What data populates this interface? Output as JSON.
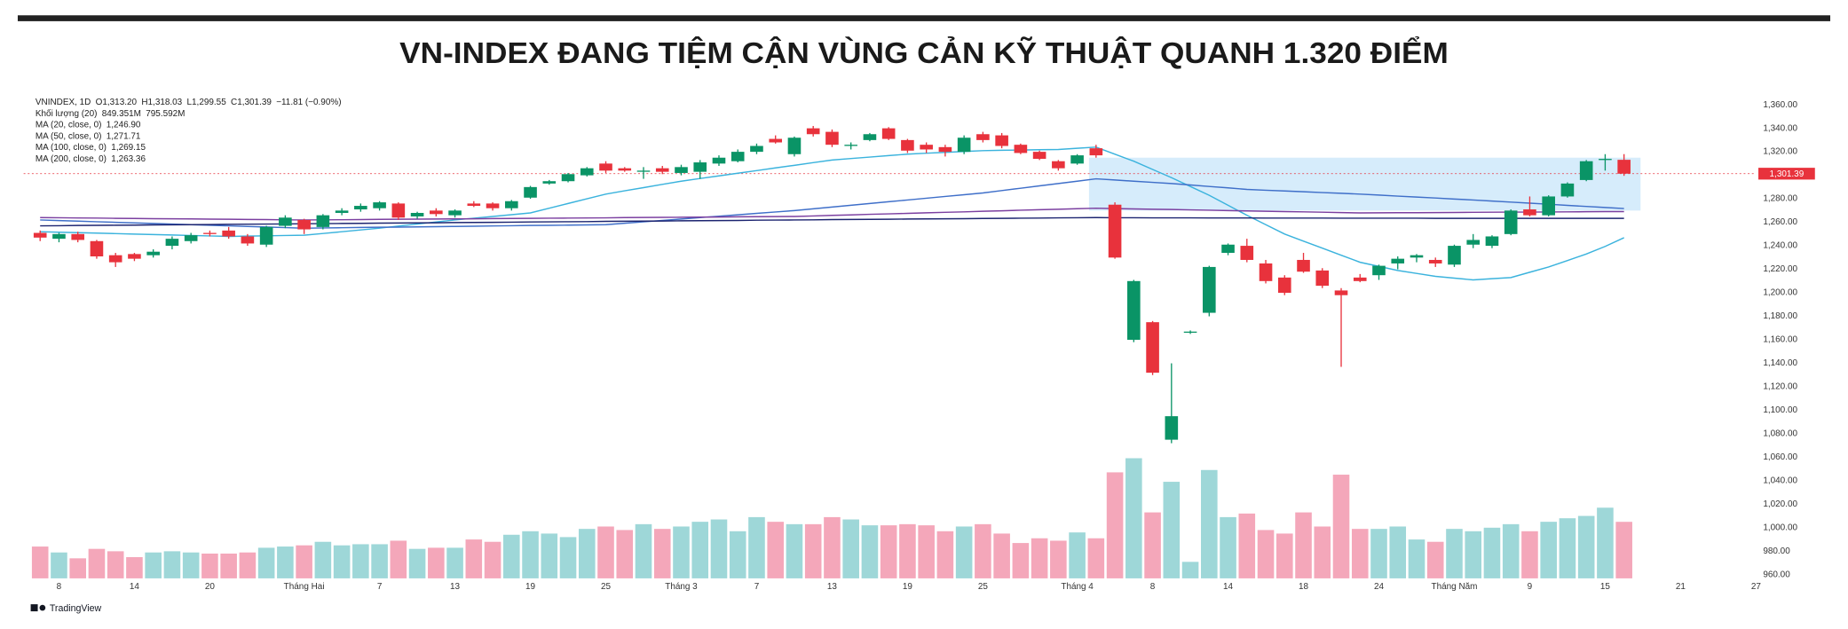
{
  "chart_data": {
    "type": "candlestick",
    "title": "VN-INDEX ĐANG TIỆM CẬN VÙNG CẢN KỸ THUẬT QUANH 1.320 ĐIỂM",
    "symbol": "VNINDEX, 1D",
    "ohlc_text": [
      "O1,313.20",
      "H1,318.03",
      "L1,299.55",
      "C1,301.39",
      "−11.81 (−0.90%)"
    ],
    "brand": "TradingView",
    "categories": [
      null,
      "8",
      null,
      null,
      null,
      "14",
      null,
      null,
      null,
      "20",
      null,
      null,
      null,
      null,
      "Tháng Hai",
      null,
      null,
      null,
      "7",
      null,
      null,
      null,
      "13",
      null,
      null,
      null,
      "19",
      null,
      null,
      null,
      "25",
      null,
      null,
      null,
      "Tháng 3",
      null,
      null,
      null,
      "7",
      null,
      null,
      null,
      "13",
      null,
      null,
      null,
      "19",
      null,
      null,
      null,
      "25",
      null,
      null,
      null,
      null,
      "Tháng 4",
      null,
      null,
      null,
      "8",
      null,
      null,
      null,
      "14",
      null,
      null,
      null,
      "18",
      null,
      null,
      null,
      "24",
      null,
      null,
      null,
      "Tháng Năm",
      null,
      null,
      null,
      "9",
      null,
      null,
      null,
      "15",
      null,
      null,
      null,
      "21",
      null,
      null,
      null,
      "27"
    ],
    "ylim": [
      956,
      1369
    ],
    "yticks": [
      {
        "value": 960,
        "label": "960.00"
      },
      {
        "value": 980,
        "label": "980.00"
      },
      {
        "value": 1000,
        "label": "1,000.00"
      },
      {
        "value": 1020,
        "label": "1,020.00"
      },
      {
        "value": 1040,
        "label": "1,040.00"
      },
      {
        "value": 1060,
        "label": "1,060.00"
      },
      {
        "value": 1080,
        "label": "1,080.00"
      },
      {
        "value": 1100,
        "label": "1,100.00"
      },
      {
        "value": 1120,
        "label": "1,120.00"
      },
      {
        "value": 1140,
        "label": "1,140.00"
      },
      {
        "value": 1160,
        "label": "1,160.00"
      },
      {
        "value": 1180,
        "label": "1,180.00"
      },
      {
        "value": 1200,
        "label": "1,200.00"
      },
      {
        "value": 1220,
        "label": "1,220.00"
      },
      {
        "value": 1240,
        "label": "1,240.00"
      },
      {
        "value": 1260,
        "label": "1,260.00"
      },
      {
        "value": 1280,
        "label": "1,280.00"
      },
      {
        "value": 1300,
        "label": "1,300.00"
      },
      {
        "value": 1320,
        "label": "1,320.00"
      },
      {
        "value": 1340,
        "label": "1,340.00"
      },
      {
        "value": 1360,
        "label": "1,360.00"
      }
    ],
    "grid": false,
    "up_color": "#0a9466",
    "down_color": "#e8323c",
    "last_price_label": "1,301.39",
    "zone": {
      "from": 1270,
      "to": 1315,
      "start": 56,
      "color": "#d6ecfb"
    },
    "ohlc": {
      "open": [
        1251,
        1246,
        1250,
        1244,
        1232,
        1233,
        1232,
        1240,
        1244,
        1251,
        1253,
        1248,
        1241,
        1257,
        1262,
        1256,
        1268,
        1271,
        1272,
        1276,
        1265,
        1270,
        1266,
        1276,
        1276,
        1272,
        1281,
        1293,
        1295,
        1300,
        1310,
        1306,
        1303,
        1306,
        1302,
        1303,
        1310,
        1312,
        1320,
        1331,
        1318,
        1340,
        1337,
        1325,
        1330,
        1340,
        1330,
        1326,
        1324,
        1320,
        1335,
        1334,
        1326,
        1320,
        1312,
        1310,
        1323,
        1275,
        1160,
        1175,
        1075,
        1166,
        1183,
        1234,
        1240,
        1225,
        1213,
        1228,
        1219,
        1202,
        1213,
        1215,
        1225,
        1230,
        1228,
        1224,
        1241,
        1240,
        1250,
        1271,
        1266,
        1282,
        1296,
        1313,
        1313.2,
        null,
        null,
        null,
        null,
        null,
        null,
        null
      ],
      "high": [
        1253,
        1251,
        1252,
        1245,
        1234,
        1234,
        1237,
        1248,
        1251,
        1253,
        1256,
        1250,
        1257,
        1266,
        1263,
        1267,
        1272,
        1276,
        1278,
        1277,
        1269,
        1272,
        1271,
        1278,
        1277,
        1279,
        1291,
        1296,
        1302,
        1307,
        1312,
        1307,
        1307,
        1308,
        1309,
        1313,
        1317,
        1322,
        1327,
        1334,
        1333,
        1342,
        1339,
        1328,
        1336,
        1341,
        1331,
        1328,
        1326,
        1334,
        1337,
        1336,
        1327,
        1321,
        1313,
        1318,
        1326,
        1277,
        1211,
        1176,
        1140,
        1168,
        1223,
        1242,
        1246,
        1228,
        1215,
        1234,
        1221,
        1204,
        1216,
        1224,
        1231,
        1233,
        1230,
        1241,
        1250,
        1249,
        1271,
        1282,
        1283,
        1294,
        1313,
        1318,
        1318.03,
        null,
        null,
        null,
        null,
        null,
        null,
        null
      ],
      "low": [
        1244,
        1243,
        1243,
        1229,
        1222,
        1227,
        1230,
        1237,
        1242,
        1248,
        1246,
        1240,
        1239,
        1255,
        1250,
        1254,
        1266,
        1269,
        1270,
        1262,
        1263,
        1265,
        1264,
        1273,
        1270,
        1270,
        1280,
        1292,
        1294,
        1299,
        1302,
        1303,
        1297,
        1301,
        1300,
        1297,
        1308,
        1311,
        1318,
        1327,
        1316,
        1333,
        1324,
        1322,
        1329,
        1330,
        1319,
        1319,
        1316,
        1318,
        1328,
        1323,
        1318,
        1313,
        1304,
        1309,
        1315,
        1229,
        1158,
        1130,
        1072,
        1165,
        1180,
        1232,
        1226,
        1208,
        1198,
        1217,
        1204,
        1137,
        1209,
        1211,
        1220,
        1226,
        1222,
        1222,
        1238,
        1238,
        1249,
        1265,
        1265,
        1281,
        1295,
        1304,
        1299.55,
        null,
        null,
        null,
        null,
        null,
        null,
        null
      ],
      "close": [
        1247,
        1250,
        1245,
        1231,
        1226,
        1229,
        1235,
        1246,
        1249,
        1250,
        1248,
        1242,
        1256,
        1264,
        1254,
        1266,
        1270,
        1274,
        1277,
        1264,
        1268,
        1267,
        1270,
        1274,
        1272,
        1278,
        1290,
        1295,
        1301,
        1306,
        1304,
        1304,
        1304,
        1303,
        1307,
        1311,
        1315,
        1320,
        1325,
        1328,
        1332,
        1335,
        1326,
        1326,
        1335,
        1331,
        1321,
        1322,
        1320,
        1332,
        1330,
        1325,
        1319,
        1314,
        1306,
        1317,
        1317,
        1230,
        1210,
        1132,
        1095,
        1167,
        1222,
        1241,
        1228,
        1210,
        1200,
        1218,
        1206,
        1198,
        1210,
        1223,
        1229,
        1232,
        1225,
        1240,
        1245,
        1248,
        1270,
        1266,
        1282,
        1293,
        1312,
        1314,
        1301.39,
        null,
        null,
        null,
        null,
        null,
        null,
        null
      ]
    },
    "volume": {
      "name": "Khối lượng (20)",
      "value_label": "849.351M",
      "ma_label": "795.592M",
      "up_color": "#9ed7d8",
      "down_color": "#f4a7ba",
      "values": [
        478,
        389,
        301,
        443,
        407,
        319,
        389,
        407,
        389,
        372,
        372,
        389,
        460,
        478,
        496,
        549,
        496,
        513,
        513,
        566,
        443,
        460,
        460,
        584,
        549,
        655,
        708,
        673,
        620,
        743,
        779,
        726,
        814,
        743,
        779,
        850,
        885,
        708,
        920,
        850,
        814,
        814,
        920,
        885,
        797,
        797,
        814,
        797,
        708,
        779,
        814,
        673,
        531,
        602,
        566,
        690,
        602,
        1593,
        1805,
        991,
        1451,
        248,
        1628,
        920,
        974,
        726,
        673,
        991,
        779,
        1558,
        743,
        743,
        779,
        584,
        549,
        743,
        708,
        761,
        814,
        708,
        850,
        903,
        938,
        1062,
        849.351,
        null,
        null,
        null,
        null,
        null,
        null,
        null
      ]
    },
    "series": [
      {
        "name": "MA (20, close, 0)",
        "value_label": "1,246.90",
        "color": "#3bb3dd",
        "values": [
          1252,
          1251.6,
          1251.2,
          1250.8,
          1250.4,
          1250,
          1249.6,
          1249.2,
          1248.8,
          1248.4,
          1248,
          1248.3,
          1248.5,
          1248.8,
          1249,
          1250.5,
          1252,
          1253.5,
          1255,
          1256.8,
          1258.5,
          1260.3,
          1262,
          1263.5,
          1265,
          1266.5,
          1268,
          1272,
          1276,
          1280,
          1284,
          1286.8,
          1289.5,
          1292.3,
          1295,
          1297.3,
          1299.5,
          1301.8,
          1304,
          1306.3,
          1308.5,
          1310.8,
          1313,
          1314.3,
          1315.5,
          1316.8,
          1318,
          1318.8,
          1319.5,
          1320.3,
          1321,
          1321.3,
          1321.5,
          1321.8,
          1322,
          1323,
          1324,
          1318,
          1312,
          1305,
          1298,
          1290.5,
          1283,
          1274.5,
          1266,
          1258,
          1250,
          1244,
          1238,
          1232,
          1226,
          1222.5,
          1219,
          1216.5,
          1214,
          1212.5,
          1211,
          1212,
          1213,
          1217.5,
          1222,
          1227.5,
          1233,
          1239.5,
          1246.9,
          null,
          null,
          null,
          null,
          null,
          null,
          null
        ]
      },
      {
        "name": "MA (50, close, 0)",
        "value_label": "1,271.71",
        "color": "#3f6fc9",
        "values": [
          1262,
          1261.5,
          1261,
          1260.5,
          1260,
          1259.5,
          1259,
          1258.5,
          1258,
          1257.5,
          1257,
          1256.5,
          1256,
          1255.5,
          1255,
          1255.2,
          1255.4,
          1255.6,
          1255.8,
          1255.9,
          1256.1,
          1256.3,
          1256.5,
          1256.7,
          1256.9,
          1257.1,
          1257.3,
          1257.4,
          1257.6,
          1257.8,
          1258,
          1259.2,
          1260.4,
          1261.6,
          1262.8,
          1264,
          1265.2,
          1266.4,
          1267.6,
          1268.8,
          1270,
          1271.5,
          1273,
          1274.5,
          1276,
          1277.5,
          1279,
          1280.5,
          1282,
          1283.5,
          1285,
          1287,
          1289,
          1291,
          1293,
          1295,
          1297,
          1296,
          1295,
          1294,
          1293,
          1291.8,
          1290.5,
          1289.3,
          1288,
          1287.3,
          1286.7,
          1286,
          1285.3,
          1284.7,
          1284,
          1283.2,
          1282.3,
          1281.5,
          1280.7,
          1279.8,
          1279,
          1278.1,
          1277.2,
          1276.3,
          1275.4,
          1274.4,
          1273.5,
          1272.6,
          1271.71,
          null,
          null,
          null,
          null,
          null,
          null,
          null
        ]
      },
      {
        "name": "MA (100, close, 0)",
        "value_label": "1,269.15",
        "color": "#7b3fa0",
        "values": [
          1264,
          1263.9,
          1263.7,
          1263.6,
          1263.4,
          1263.3,
          1263.1,
          1263,
          1262.9,
          1262.7,
          1262.6,
          1262.4,
          1262.3,
          1262.1,
          1262,
          1262.1,
          1262.2,
          1262.3,
          1262.5,
          1262.6,
          1262.7,
          1262.8,
          1262.9,
          1263,
          1263.2,
          1263.3,
          1263.4,
          1263.5,
          1263.6,
          1263.7,
          1263.8,
          1264,
          1264.1,
          1264.2,
          1264.3,
          1264.4,
          1264.5,
          1264.7,
          1264.8,
          1264.9,
          1265,
          1265.4,
          1265.9,
          1266.3,
          1266.8,
          1267.2,
          1267.6,
          1268.1,
          1268.5,
          1268.9,
          1269.4,
          1269.8,
          1270.3,
          1270.7,
          1271.1,
          1271.6,
          1272,
          1271.7,
          1271.4,
          1271.1,
          1270.9,
          1270.6,
          1270.3,
          1270,
          1269.7,
          1269.4,
          1269.1,
          1268.9,
          1268.6,
          1268.3,
          1268,
          1268.1,
          1268.2,
          1268.2,
          1268.3,
          1268.4,
          1268.5,
          1268.6,
          1268.7,
          1268.7,
          1268.8,
          1268.9,
          1269,
          1269.1,
          1269.15,
          null,
          null,
          null,
          null,
          null,
          null,
          null
        ]
      },
      {
        "name": "MA (200, close, 0)",
        "value_label": "1,263.36",
        "color": "#1c2470",
        "values": [
          1257,
          1257.1,
          1257.3,
          1257.4,
          1257.5,
          1257.6,
          1257.8,
          1257.9,
          1258,
          1258.1,
          1258.3,
          1258.4,
          1258.5,
          1258.6,
          1258.8,
          1258.9,
          1259,
          1259.1,
          1259.3,
          1259.4,
          1259.5,
          1259.6,
          1259.8,
          1259.9,
          1260,
          1260.1,
          1260.3,
          1260.4,
          1260.5,
          1260.6,
          1260.8,
          1260.9,
          1261,
          1261.1,
          1261.3,
          1261.4,
          1261.5,
          1261.6,
          1261.8,
          1261.9,
          1262,
          1262.1,
          1262.3,
          1262.4,
          1262.5,
          1262.6,
          1262.8,
          1262.9,
          1263,
          1263.1,
          1263.3,
          1263.4,
          1263.5,
          1263.6,
          1263.8,
          1263.9,
          1264,
          1263.9,
          1263.9,
          1263.8,
          1263.8,
          1263.8,
          1263.7,
          1263.7,
          1263.7,
          1263.6,
          1263.6,
          1263.6,
          1263.6,
          1263.5,
          1263.5,
          1263.5,
          1263.5,
          1263.5,
          1263.4,
          1263.4,
          1263.4,
          1263.4,
          1263.4,
          1263.4,
          1263.4,
          1263.4,
          1263.4,
          1263.4,
          1263.36,
          null,
          null,
          null,
          null,
          null,
          null,
          null
        ]
      }
    ]
  }
}
